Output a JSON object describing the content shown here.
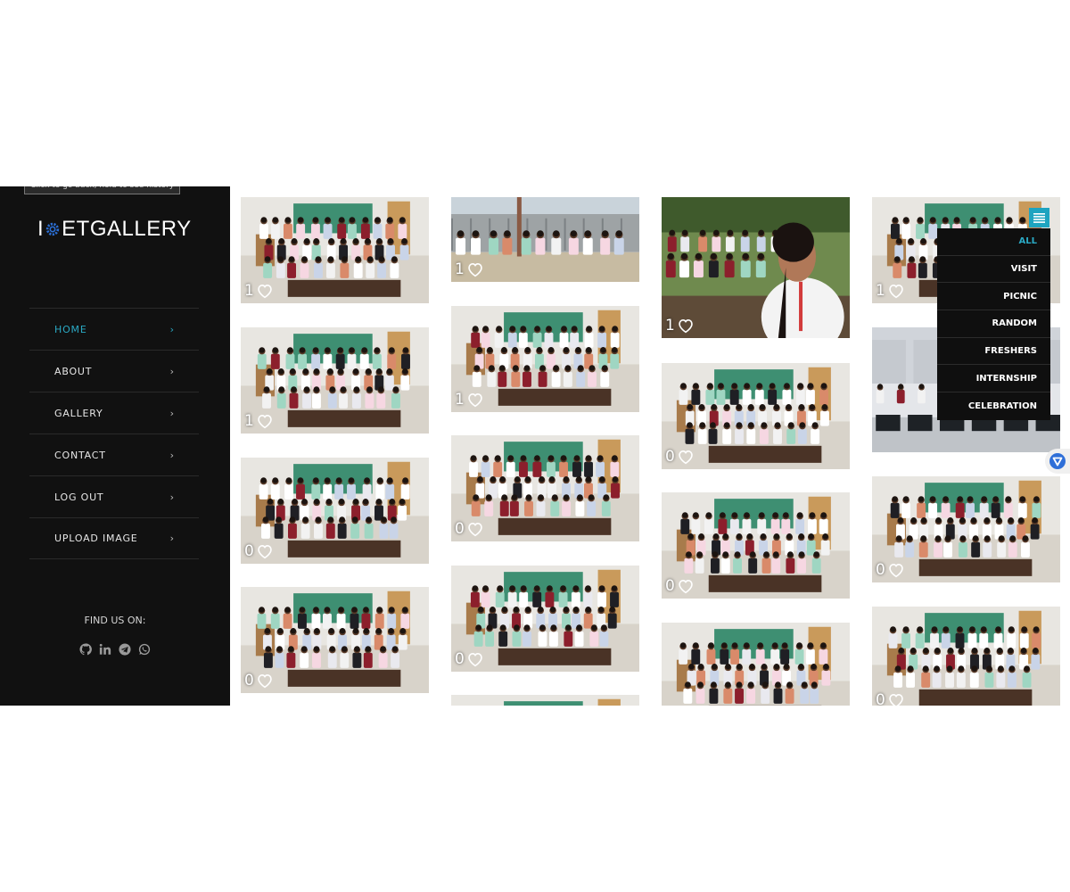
{
  "tooltip": "Click to go back, hold to see history",
  "logo": {
    "prefix": "I",
    "suffix": "ETGALLERY"
  },
  "nav": [
    {
      "label": "HOME",
      "active": true
    },
    {
      "label": "ABOUT"
    },
    {
      "label": "GALLERY"
    },
    {
      "label": "CONTACT"
    },
    {
      "label": "LOG OUT"
    },
    {
      "label": "UPLOAD IMAGE"
    }
  ],
  "chevron": "›",
  "find_us": "FIND US ON:",
  "socials": [
    "github-icon",
    "linkedin-icon",
    "telegram-icon",
    "whatsapp-icon"
  ],
  "filters": [
    "ALL",
    "VISIT",
    "PICNIC",
    "RANDOM",
    "FRESHERS",
    "INTERNSHIP",
    "CELEBRATION"
  ],
  "active_filter": "ALL",
  "accent_color": "#2aa9c4",
  "gallery": {
    "col1": [
      {
        "scene": "group-classroom",
        "likes": "1"
      },
      {
        "scene": "group-classroom",
        "likes": "1"
      },
      {
        "scene": "group-classroom",
        "likes": "0"
      },
      {
        "scene": "group-classroom",
        "likes": "0"
      }
    ],
    "col2": [
      {
        "scene": "outdoor-industrial",
        "likes": "1"
      },
      {
        "scene": "group-classroom",
        "likes": "1"
      },
      {
        "scene": "group-classroom",
        "likes": "0"
      },
      {
        "scene": "group-classroom",
        "likes": "0"
      },
      {
        "scene": "group-classroom",
        "likes": ""
      }
    ],
    "col3": [
      {
        "scene": "outdoor-selfie",
        "likes": "1"
      },
      {
        "scene": "group-classroom",
        "likes": "0"
      },
      {
        "scene": "group-classroom",
        "likes": "0"
      },
      {
        "scene": "group-classroom",
        "likes": ""
      }
    ],
    "col4": [
      {
        "scene": "group-classroom",
        "likes": "1"
      },
      {
        "scene": "office-computers",
        "likes": ""
      },
      {
        "scene": "group-classroom",
        "likes": "0"
      },
      {
        "scene": "group-classroom",
        "likes": "0"
      }
    ]
  }
}
